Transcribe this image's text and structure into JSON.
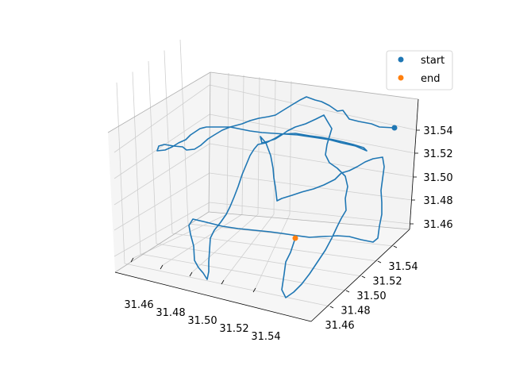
{
  "chart_data": {
    "type": "line",
    "projection": "3d",
    "title": "",
    "xlabel": "",
    "ylabel": "",
    "zlabel": "",
    "xlim": [
      31.445,
      31.555
    ],
    "ylim": [
      31.445,
      31.555
    ],
    "zlim": [
      31.445,
      31.555
    ],
    "x_ticks": [
      "31.46",
      "31.48",
      "31.50",
      "31.52",
      "31.54"
    ],
    "y_ticks": [
      "31.46",
      "31.48",
      "31.50",
      "31.52",
      "31.54"
    ],
    "z_ticks": [
      "31.46",
      "31.48",
      "31.50",
      "31.52",
      "31.54"
    ],
    "grid": true,
    "legend_placement": "top-right",
    "legend": [
      {
        "label": "start",
        "color": "#1f77b4"
      },
      {
        "label": "end",
        "color": "#ff7f0e"
      }
    ],
    "series": [
      {
        "color": "#1f77b4",
        "projected_path": [
          [
            497,
            161
          ],
          [
            478,
            160
          ],
          [
            468,
            156
          ],
          [
            452,
            153
          ],
          [
            440,
            150
          ],
          [
            432,
            139
          ],
          [
            425,
            140
          ],
          [
            415,
            133
          ],
          [
            405,
            128
          ],
          [
            397,
            126
          ],
          [
            386,
            122
          ],
          [
            378,
            126
          ],
          [
            368,
            132
          ],
          [
            355,
            140
          ],
          [
            347,
            145
          ],
          [
            338,
            147
          ],
          [
            326,
            149
          ],
          [
            315,
            152
          ],
          [
            305,
            156
          ],
          [
            290,
            160
          ],
          [
            280,
            164
          ],
          [
            270,
            170
          ],
          [
            262,
            175
          ],
          [
            253,
            183
          ],
          [
            245,
            188
          ],
          [
            235,
            189
          ],
          [
            230,
            185
          ],
          [
            219,
            184
          ],
          [
            207,
            182
          ],
          [
            200,
            184
          ],
          [
            198,
            190
          ],
          [
            208,
            189
          ],
          [
            217,
            185
          ],
          [
            225,
            180
          ],
          [
            234,
            176
          ],
          [
            240,
            170
          ],
          [
            246,
            166
          ],
          [
            252,
            162
          ],
          [
            260,
            160
          ],
          [
            270,
            160
          ],
          [
            280,
            160
          ],
          [
            290,
            160
          ],
          [
            300,
            162
          ],
          [
            315,
            165
          ],
          [
            330,
            167
          ],
          [
            345,
            168
          ],
          [
            360,
            169
          ],
          [
            375,
            170
          ],
          [
            395,
            173
          ],
          [
            415,
            176
          ],
          [
            430,
            180
          ],
          [
            448,
            184
          ],
          [
            462,
            190
          ],
          [
            458,
            186
          ],
          [
            445,
            182
          ],
          [
            433,
            179
          ],
          [
            420,
            176
          ],
          [
            405,
            173
          ],
          [
            390,
            171
          ],
          [
            372,
            168
          ],
          [
            355,
            169
          ],
          [
            345,
            175
          ],
          [
            335,
            180
          ],
          [
            325,
            182
          ],
          [
            320,
            188
          ],
          [
            315,
            196
          ],
          [
            310,
            208
          ],
          [
            305,
            220
          ],
          [
            300,
            235
          ],
          [
            295,
            248
          ],
          [
            290,
            260
          ],
          [
            285,
            270
          ],
          [
            278,
            280
          ],
          [
            270,
            290
          ],
          [
            265,
            300
          ],
          [
            264,
            315
          ],
          [
            263,
            330
          ],
          [
            263,
            342
          ],
          [
            261,
            352
          ],
          [
            256,
            344
          ],
          [
            250,
            337
          ],
          [
            245,
            328
          ],
          [
            244,
            310
          ],
          [
            240,
            295
          ],
          [
            238,
            284
          ],
          [
            243,
            276
          ],
          [
            260,
            280
          ],
          [
            280,
            285
          ],
          [
            300,
            288
          ],
          [
            320,
            290
          ],
          [
            340,
            292
          ],
          [
            355,
            294
          ],
          [
            375,
            297
          ],
          [
            390,
            299
          ],
          [
            405,
            298
          ],
          [
            425,
            297
          ],
          [
            440,
            298
          ],
          [
            455,
            302
          ],
          [
            470,
            305
          ],
          [
            476,
            300
          ],
          [
            478,
            285
          ],
          [
            481,
            270
          ],
          [
            481,
            255
          ],
          [
            480,
            240
          ],
          [
            482,
            225
          ],
          [
            484,
            210
          ],
          [
            482,
            198
          ],
          [
            470,
            200
          ],
          [
            460,
            204
          ],
          [
            450,
            210
          ],
          [
            440,
            215
          ],
          [
            430,
            218
          ],
          [
            422,
            226
          ],
          [
            408,
            233
          ],
          [
            395,
            238
          ],
          [
            380,
            242
          ],
          [
            368,
            246
          ],
          [
            355,
            250
          ],
          [
            349,
            253
          ],
          [
            347,
            236
          ],
          [
            345,
            224
          ],
          [
            344,
            212
          ],
          [
            341,
            196
          ],
          [
            335,
            180
          ],
          [
            328,
            172
          ],
          [
            330,
            180
          ],
          [
            338,
            178
          ],
          [
            347,
            175
          ],
          [
            355,
            170
          ],
          [
            362,
            165
          ],
          [
            372,
            160
          ],
          [
            385,
            156
          ],
          [
            398,
            150
          ],
          [
            408,
            145
          ],
          [
            412,
            152
          ],
          [
            418,
            162
          ],
          [
            415,
            172
          ],
          [
            412,
            182
          ],
          [
            410,
            195
          ],
          [
            415,
            205
          ],
          [
            425,
            212
          ],
          [
            435,
            222
          ],
          [
            438,
            235
          ],
          [
            435,
            250
          ],
          [
            436,
            265
          ],
          [
            430,
            275
          ],
          [
            425,
            285
          ],
          [
            418,
            300
          ],
          [
            410,
            315
          ],
          [
            400,
            330
          ],
          [
            390,
            345
          ],
          [
            380,
            358
          ],
          [
            370,
            368
          ],
          [
            360,
            375
          ],
          [
            355,
            365
          ],
          [
            358,
            345
          ],
          [
            360,
            330
          ],
          [
            366,
            318
          ],
          [
            372,
            300
          ]
        ]
      }
    ],
    "markers": [
      {
        "label": "start",
        "color": "#1f77b4",
        "projected_point": [
          497,
          161
        ]
      },
      {
        "label": "end",
        "color": "#ff7f0e",
        "projected_point": [
          372,
          300
        ]
      }
    ]
  }
}
